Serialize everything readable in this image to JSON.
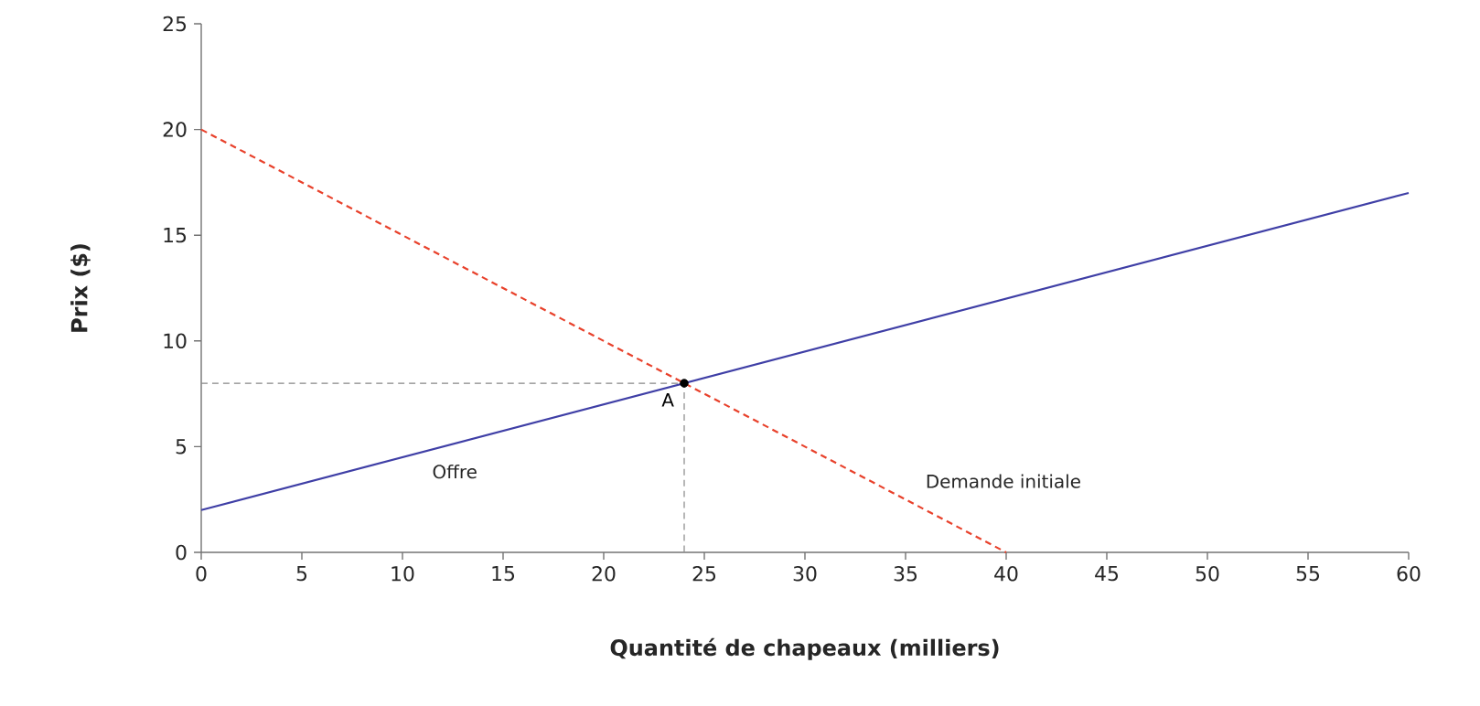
{
  "chart_data": {
    "type": "line",
    "xlabel": "Quantité de chapeaux (milliers)",
    "ylabel": "Prix ($)",
    "xlim": [
      0,
      60
    ],
    "ylim": [
      0,
      25
    ],
    "xticks": [
      0,
      5,
      10,
      15,
      20,
      25,
      30,
      35,
      40,
      45,
      50,
      55,
      60
    ],
    "yticks": [
      0,
      5,
      10,
      15,
      20,
      25
    ],
    "series": [
      {
        "name": "Offre",
        "color": "#3f3fa6",
        "line_style": "solid",
        "x": [
          0,
          60
        ],
        "values": [
          2,
          17
        ]
      },
      {
        "name": "Demande initiale",
        "color": "#e8412b",
        "line_style": "dashed",
        "x": [
          0,
          40
        ],
        "values": [
          20,
          0
        ]
      },
      {
        "color": "#888888",
        "line_style": "dashed",
        "x": [
          0,
          24,
          24
        ],
        "values": [
          8,
          8,
          0
        ]
      },
      {
        "type": "scatter",
        "color": "#000000",
        "marker": "circle",
        "x": [
          24
        ],
        "values": [
          8
        ]
      }
    ],
    "annotations": [
      {
        "text": "A",
        "x": 24,
        "y": 8
      }
    ]
  }
}
